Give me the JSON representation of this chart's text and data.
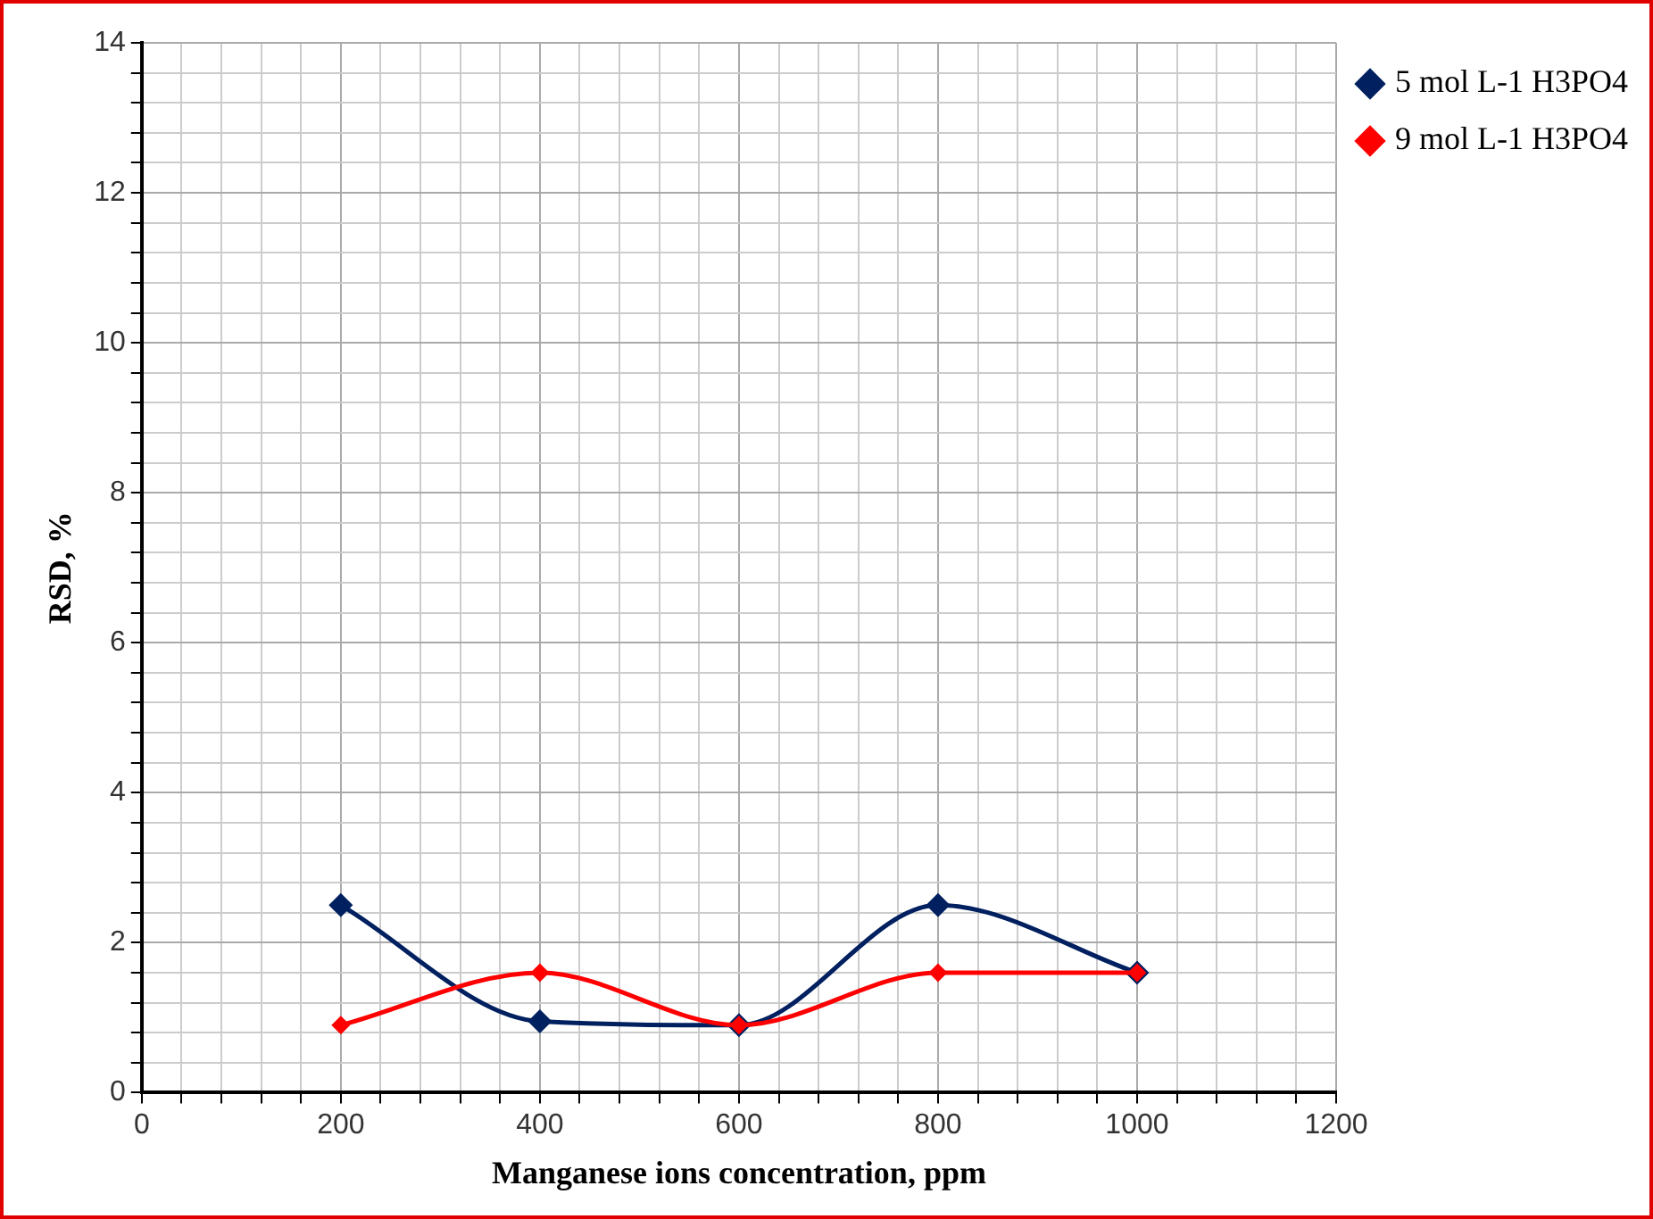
{
  "chart_data": {
    "type": "line",
    "xlabel": "Manganese ions concentration, ppm",
    "ylabel": "RSD, %",
    "x": [
      200,
      400,
      600,
      800,
      1000
    ],
    "series": [
      {
        "name": "5 mol L-1 H3PO4",
        "color": "#002060",
        "values": [
          2.5,
          0.95,
          0.9,
          2.5,
          1.6
        ]
      },
      {
        "name": "9 mol L-1 H3PO4",
        "color": "#ff0000",
        "values": [
          0.9,
          1.6,
          0.9,
          1.6,
          1.6
        ]
      }
    ],
    "xlim": [
      0,
      1200
    ],
    "xticks": [
      0,
      {
        "value": 40,
        "label": null
      },
      {
        "value": 80,
        "label": null
      },
      {
        "value": 120,
        "label": null
      },
      {
        "value": 160,
        "label": null
      },
      200,
      {
        "value": 240,
        "label": null
      },
      {
        "value": 280,
        "label": null
      },
      {
        "value": 320,
        "label": null
      },
      {
        "value": 360,
        "label": null
      },
      400,
      {
        "value": 440,
        "label": null
      },
      {
        "value": 480,
        "label": null
      },
      {
        "value": 520,
        "label": null
      },
      {
        "value": 560,
        "label": null
      },
      600,
      {
        "value": 640,
        "label": null
      },
      {
        "value": 680,
        "label": null
      },
      {
        "value": 720,
        "label": null
      },
      {
        "value": 760,
        "label": null
      },
      800,
      {
        "value": 840,
        "label": null
      },
      {
        "value": 880,
        "label": null
      },
      {
        "value": 920,
        "label": null
      },
      {
        "value": 960,
        "label": null
      },
      1000,
      {
        "value": 1040,
        "label": null
      },
      {
        "value": 1080,
        "label": null
      },
      {
        "value": 1120,
        "label": null
      },
      {
        "value": 1160,
        "label": null
      },
      1200
    ],
    "ylim": [
      0,
      14
    ],
    "yticks": [
      0,
      {
        "value": 0.4,
        "label": null
      },
      {
        "value": 0.8,
        "label": null
      },
      {
        "value": 1.2,
        "label": null
      },
      {
        "value": 1.6,
        "label": null
      },
      2,
      {
        "value": 2.4,
        "label": null
      },
      {
        "value": 2.8,
        "label": null
      },
      {
        "value": 3.2,
        "label": null
      },
      {
        "value": 3.6,
        "label": null
      },
      4,
      {
        "value": 4.4,
        "label": null
      },
      {
        "value": 4.8,
        "label": null
      },
      {
        "value": 5.2,
        "label": null
      },
      {
        "value": 5.6,
        "label": null
      },
      6,
      {
        "value": 6.4,
        "label": null
      },
      {
        "value": 6.8,
        "label": null
      },
      {
        "value": 7.2,
        "label": null
      },
      {
        "value": 7.6,
        "label": null
      },
      8,
      {
        "value": 8.4,
        "label": null
      },
      {
        "value": 8.8,
        "label": null
      },
      {
        "value": 9.2,
        "label": null
      },
      {
        "value": 9.6,
        "label": null
      },
      10,
      {
        "value": 10.4,
        "label": null
      },
      {
        "value": 10.8,
        "label": null
      },
      {
        "value": 11.2,
        "label": null
      },
      {
        "value": 11.6,
        "label": null
      },
      12,
      {
        "value": 12.4,
        "label": null
      },
      {
        "value": 12.8,
        "label": null
      },
      {
        "value": 13.2,
        "label": null
      },
      {
        "value": 13.6,
        "label": null
      },
      14
    ],
    "grid": true,
    "legend": "top right",
    "marker": "diamond",
    "line_style": "solid"
  }
}
